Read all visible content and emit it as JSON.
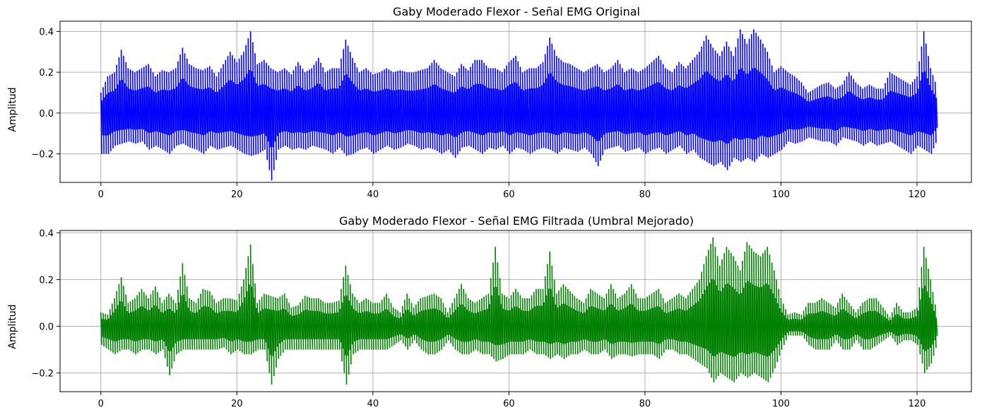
{
  "chart_data": [
    {
      "type": "line",
      "title": "Gaby Moderado Flexor - Señal EMG Original",
      "xlabel": "",
      "ylabel": "Amplitud",
      "xlim": [
        -6,
        128
      ],
      "ylim": [
        -0.34,
        0.45
      ],
      "xticks": [
        0,
        20,
        40,
        60,
        80,
        100,
        120
      ],
      "xtick_labels": [
        "0",
        "20",
        "40",
        "60",
        "80",
        "100",
        "120"
      ],
      "yticks": [
        -0.2,
        0.0,
        0.2,
        0.4
      ],
      "ytick_labels": [
        "−0.2",
        "0.0",
        "0.2",
        "0.4"
      ],
      "grid": true,
      "color": "#0000ff",
      "series": [
        {
          "x": [
            0,
            1,
            2,
            3,
            4,
            5,
            6,
            7,
            8,
            9,
            10,
            11,
            12,
            13,
            14,
            15,
            16,
            17,
            18,
            19,
            20,
            21,
            22,
            23,
            24,
            25,
            26,
            27,
            28,
            29,
            30,
            31,
            32,
            33,
            34,
            35,
            36,
            37,
            38,
            39,
            40,
            41,
            42,
            43,
            44,
            45,
            46,
            47,
            48,
            49,
            50,
            51,
            52,
            53,
            54,
            55,
            56,
            57,
            58,
            59,
            60,
            61,
            62,
            63,
            64,
            65,
            66,
            67,
            68,
            69,
            70,
            71,
            72,
            73,
            74,
            75,
            76,
            77,
            78,
            79,
            80,
            81,
            82,
            83,
            84,
            85,
            86,
            87,
            88,
            89,
            90,
            91,
            92,
            93,
            94,
            95,
            96,
            97,
            98,
            99,
            100,
            101,
            102,
            103,
            104,
            105,
            106,
            107,
            108,
            109,
            110,
            111,
            112,
            113,
            114,
            115,
            116,
            117,
            118,
            119,
            120,
            121,
            122,
            123
          ],
          "max": [
            0.1,
            0.18,
            0.2,
            0.31,
            0.22,
            0.2,
            0.22,
            0.24,
            0.18,
            0.21,
            0.2,
            0.22,
            0.32,
            0.24,
            0.22,
            0.21,
            0.23,
            0.18,
            0.24,
            0.3,
            0.25,
            0.3,
            0.4,
            0.24,
            0.26,
            0.22,
            0.2,
            0.22,
            0.19,
            0.25,
            0.2,
            0.22,
            0.27,
            0.2,
            0.22,
            0.22,
            0.36,
            0.27,
            0.2,
            0.22,
            0.19,
            0.2,
            0.22,
            0.2,
            0.21,
            0.2,
            0.2,
            0.21,
            0.22,
            0.26,
            0.22,
            0.2,
            0.18,
            0.24,
            0.21,
            0.26,
            0.26,
            0.22,
            0.22,
            0.2,
            0.25,
            0.28,
            0.2,
            0.22,
            0.22,
            0.25,
            0.37,
            0.28,
            0.25,
            0.24,
            0.22,
            0.2,
            0.22,
            0.24,
            0.2,
            0.22,
            0.26,
            0.2,
            0.22,
            0.2,
            0.22,
            0.25,
            0.28,
            0.22,
            0.2,
            0.25,
            0.22,
            0.26,
            0.3,
            0.38,
            0.32,
            0.28,
            0.35,
            0.28,
            0.41,
            0.34,
            0.41,
            0.36,
            0.3,
            0.2,
            0.23,
            0.2,
            0.18,
            0.15,
            0.1,
            0.12,
            0.14,
            0.15,
            0.12,
            0.14,
            0.2,
            0.15,
            0.12,
            0.14,
            0.12,
            0.12,
            0.2,
            0.18,
            0.16,
            0.14,
            0.18,
            0.4,
            0.22,
            0.12
          ],
          "min": [
            -0.2,
            -0.2,
            -0.16,
            -0.15,
            -0.14,
            -0.15,
            -0.14,
            -0.18,
            -0.16,
            -0.18,
            -0.2,
            -0.16,
            -0.15,
            -0.17,
            -0.18,
            -0.2,
            -0.16,
            -0.18,
            -0.17,
            -0.16,
            -0.18,
            -0.2,
            -0.21,
            -0.2,
            -0.18,
            -0.33,
            -0.18,
            -0.16,
            -0.18,
            -0.17,
            -0.18,
            -0.16,
            -0.17,
            -0.18,
            -0.2,
            -0.17,
            -0.21,
            -0.2,
            -0.18,
            -0.17,
            -0.2,
            -0.18,
            -0.16,
            -0.18,
            -0.17,
            -0.15,
            -0.16,
            -0.18,
            -0.17,
            -0.18,
            -0.2,
            -0.18,
            -0.22,
            -0.17,
            -0.16,
            -0.18,
            -0.2,
            -0.17,
            -0.18,
            -0.16,
            -0.2,
            -0.17,
            -0.18,
            -0.2,
            -0.18,
            -0.17,
            -0.18,
            -0.2,
            -0.17,
            -0.18,
            -0.19,
            -0.17,
            -0.2,
            -0.26,
            -0.18,
            -0.17,
            -0.16,
            -0.19,
            -0.18,
            -0.17,
            -0.2,
            -0.18,
            -0.17,
            -0.2,
            -0.18,
            -0.16,
            -0.2,
            -0.18,
            -0.22,
            -0.24,
            -0.26,
            -0.24,
            -0.28,
            -0.22,
            -0.24,
            -0.22,
            -0.24,
            -0.2,
            -0.22,
            -0.2,
            -0.18,
            -0.14,
            -0.15,
            -0.14,
            -0.12,
            -0.13,
            -0.14,
            -0.14,
            -0.16,
            -0.12,
            -0.13,
            -0.14,
            -0.16,
            -0.14,
            -0.16,
            -0.15,
            -0.14,
            -0.16,
            -0.18,
            -0.2,
            -0.16,
            -0.18,
            -0.2,
            -0.12
          ]
        }
      ]
    },
    {
      "type": "line",
      "title": "Gaby Moderado Flexor - Señal EMG Filtrada (Umbral Mejorado)",
      "xlabel": "",
      "ylabel": "Amplitud",
      "xlim": [
        -6,
        128
      ],
      "ylim": [
        -0.28,
        0.41
      ],
      "xticks": [
        0,
        20,
        40,
        60,
        80,
        100,
        120
      ],
      "xtick_labels": [
        "0",
        "20",
        "40",
        "60",
        "80",
        "100",
        "120"
      ],
      "yticks": [
        -0.2,
        0.0,
        0.2,
        0.4
      ],
      "ytick_labels": [
        "−0.2",
        "0.0",
        "0.2",
        "0.4"
      ],
      "grid": true,
      "color": "#008000",
      "series": [
        {
          "x": [
            0,
            1,
            2,
            3,
            4,
            5,
            6,
            7,
            8,
            9,
            10,
            11,
            12,
            13,
            14,
            15,
            16,
            17,
            18,
            19,
            20,
            21,
            22,
            23,
            24,
            25,
            26,
            27,
            28,
            29,
            30,
            31,
            32,
            33,
            34,
            35,
            36,
            37,
            38,
            39,
            40,
            41,
            42,
            43,
            44,
            45,
            46,
            47,
            48,
            49,
            50,
            51,
            52,
            53,
            54,
            55,
            56,
            57,
            58,
            59,
            60,
            61,
            62,
            63,
            64,
            65,
            66,
            67,
            68,
            69,
            70,
            71,
            72,
            73,
            74,
            75,
            76,
            77,
            78,
            79,
            80,
            81,
            82,
            83,
            84,
            85,
            86,
            87,
            88,
            89,
            90,
            91,
            92,
            93,
            94,
            95,
            96,
            97,
            98,
            99,
            100,
            101,
            102,
            103,
            104,
            105,
            106,
            107,
            108,
            109,
            110,
            111,
            112,
            113,
            114,
            115,
            116,
            117,
            118,
            119,
            120,
            121,
            122,
            123
          ],
          "max": [
            0.06,
            0.05,
            0.12,
            0.21,
            0.1,
            0.12,
            0.16,
            0.12,
            0.17,
            0.1,
            0.14,
            0.1,
            0.27,
            0.12,
            0.1,
            0.16,
            0.15,
            0.1,
            0.12,
            0.12,
            0.11,
            0.2,
            0.35,
            0.1,
            0.14,
            0.13,
            0.12,
            0.14,
            0.08,
            0.09,
            0.13,
            0.12,
            0.12,
            0.1,
            0.1,
            0.11,
            0.26,
            0.14,
            0.1,
            0.12,
            0.1,
            0.1,
            0.14,
            0.08,
            0.06,
            0.14,
            0.08,
            0.12,
            0.13,
            0.14,
            0.12,
            0.06,
            0.12,
            0.18,
            0.12,
            0.1,
            0.12,
            0.14,
            0.34,
            0.14,
            0.12,
            0.16,
            0.12,
            0.12,
            0.16,
            0.16,
            0.32,
            0.14,
            0.18,
            0.15,
            0.12,
            0.1,
            0.16,
            0.14,
            0.12,
            0.18,
            0.12,
            0.14,
            0.18,
            0.12,
            0.12,
            0.14,
            0.16,
            0.1,
            0.12,
            0.14,
            0.12,
            0.16,
            0.2,
            0.3,
            0.38,
            0.26,
            0.34,
            0.3,
            0.24,
            0.36,
            0.32,
            0.3,
            0.34,
            0.24,
            0.12,
            0.05,
            0.06,
            0.05,
            0.1,
            0.1,
            0.12,
            0.1,
            0.08,
            0.14,
            0.1,
            0.06,
            0.1,
            0.12,
            0.12,
            0.08,
            0.04,
            0.1,
            0.06,
            0.06,
            0.08,
            0.34,
            0.2,
            0.04
          ],
          "min": [
            -0.08,
            -0.1,
            -0.12,
            -0.1,
            -0.1,
            -0.12,
            -0.1,
            -0.1,
            -0.12,
            -0.1,
            -0.21,
            -0.12,
            -0.1,
            -0.1,
            -0.1,
            -0.1,
            -0.1,
            -0.1,
            -0.09,
            -0.12,
            -0.1,
            -0.12,
            -0.12,
            -0.1,
            -0.1,
            -0.25,
            -0.14,
            -0.1,
            -0.1,
            -0.1,
            -0.1,
            -0.1,
            -0.1,
            -0.1,
            -0.1,
            -0.1,
            -0.25,
            -0.12,
            -0.1,
            -0.1,
            -0.1,
            -0.1,
            -0.1,
            -0.08,
            -0.06,
            -0.1,
            -0.06,
            -0.1,
            -0.12,
            -0.12,
            -0.1,
            -0.06,
            -0.1,
            -0.12,
            -0.12,
            -0.1,
            -0.12,
            -0.12,
            -0.15,
            -0.14,
            -0.12,
            -0.12,
            -0.12,
            -0.1,
            -0.12,
            -0.12,
            -0.14,
            -0.12,
            -0.14,
            -0.12,
            -0.12,
            -0.1,
            -0.12,
            -0.12,
            -0.1,
            -0.14,
            -0.12,
            -0.12,
            -0.13,
            -0.12,
            -0.12,
            -0.12,
            -0.14,
            -0.1,
            -0.1,
            -0.12,
            -0.12,
            -0.14,
            -0.16,
            -0.18,
            -0.24,
            -0.2,
            -0.22,
            -0.24,
            -0.2,
            -0.22,
            -0.2,
            -0.22,
            -0.24,
            -0.18,
            -0.1,
            -0.04,
            -0.04,
            -0.04,
            -0.08,
            -0.1,
            -0.1,
            -0.1,
            -0.06,
            -0.1,
            -0.1,
            -0.06,
            -0.1,
            -0.1,
            -0.08,
            -0.06,
            -0.04,
            -0.08,
            -0.06,
            -0.06,
            -0.08,
            -0.2,
            -0.16,
            -0.06
          ]
        }
      ]
    }
  ]
}
